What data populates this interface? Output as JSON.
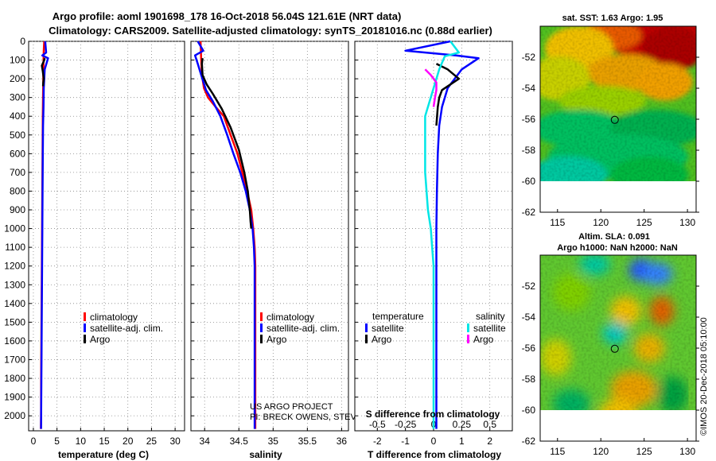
{
  "header": {
    "line1": "Argo profile: aoml 1901698_178 16-Oct-2018 56.04S 121.61E (NRT data)",
    "line2": "Climatology: CARS2009. Satellite-adjusted climatology: synTS_20181016.nc (0.88d earlier)"
  },
  "colors": {
    "climatology": "#ff0000",
    "satellite": "#0000ff",
    "argo": "#000000",
    "sat_salinity": "#00e6e6",
    "argo_salinity": "#ff00ff"
  },
  "chart_data": [
    {
      "id": "temperature",
      "type": "line",
      "xlabel": "temperature (deg C)",
      "ylabel": "",
      "xlim": [
        -1,
        32
      ],
      "ylim": [
        2080,
        0
      ],
      "xticks": [
        0,
        5,
        10,
        15,
        20,
        25,
        30
      ],
      "yticks": [
        0,
        100,
        200,
        300,
        400,
        500,
        600,
        700,
        800,
        900,
        1000,
        1100,
        1200,
        1300,
        1400,
        1500,
        1600,
        1700,
        1800,
        1900,
        2000
      ],
      "series": [
        {
          "name": "climatology",
          "color": "#ff0000",
          "x": [
            2.3,
            2.2,
            2.15,
            2.1,
            2.05,
            2.0,
            1.95,
            1.9,
            1.85,
            1.8,
            1.75,
            1.7,
            1.65,
            1.62,
            1.6
          ],
          "y": [
            0,
            50,
            100,
            200,
            300,
            400,
            600,
            800,
            1000,
            1200,
            1400,
            1600,
            1800,
            2000,
            2070
          ]
        },
        {
          "name": "satellite-adj. clim.",
          "color": "#0000ff",
          "x": [
            2.5,
            2.7,
            1.9,
            3.1,
            2.4,
            2.2,
            2.15,
            2.05,
            2.0,
            1.95,
            1.9,
            1.85,
            1.8,
            1.75,
            1.7,
            1.65,
            1.62
          ],
          "y": [
            0,
            60,
            75,
            90,
            150,
            250,
            350,
            450,
            600,
            800,
            1000,
            1200,
            1400,
            1600,
            1800,
            2000,
            2070
          ]
        },
        {
          "name": "Argo",
          "color": "#000000",
          "x": [
            2.4,
            2.3,
            1.8,
            2.0,
            2.2,
            2.1,
            2.05
          ],
          "y": [
            90,
            100,
            130,
            160,
            200,
            220,
            240
          ]
        }
      ],
      "legend": [
        "climatology",
        "satellite-adj. clim.",
        "Argo"
      ],
      "legend_position": "bottom-right"
    },
    {
      "id": "salinity",
      "type": "line",
      "xlabel": "salinity",
      "ylabel": "",
      "xlim": [
        33.8,
        36.1
      ],
      "ylim": [
        2080,
        0
      ],
      "xticks": [
        34,
        34.5,
        35,
        35.5,
        36
      ],
      "series": [
        {
          "name": "climatology",
          "color": "#ff0000",
          "x": [
            33.94,
            33.95,
            33.96,
            33.99,
            34.05,
            34.16,
            34.28,
            34.38,
            34.48,
            34.55,
            34.62,
            34.68,
            34.71,
            34.73,
            34.74,
            34.74,
            34.74,
            34.74
          ],
          "y": [
            0,
            100,
            180,
            250,
            300,
            350,
            400,
            500,
            600,
            700,
            800,
            900,
            1000,
            1100,
            1200,
            1500,
            1800,
            2070
          ]
        },
        {
          "name": "satellite-adj. clim.",
          "color": "#0000ff",
          "x": [
            33.9,
            33.98,
            33.86,
            33.9,
            33.95,
            34.02,
            34.12,
            34.23,
            34.33,
            34.42,
            34.52,
            34.6,
            34.66,
            34.7,
            34.72,
            34.73,
            34.73,
            34.73
          ],
          "y": [
            0,
            50,
            75,
            120,
            180,
            260,
            320,
            400,
            500,
            600,
            700,
            800,
            900,
            1000,
            1100,
            1200,
            1500,
            2070
          ]
        },
        {
          "name": "Argo",
          "color": "#000000",
          "x": [
            33.97,
            33.96,
            33.97,
            34.03,
            34.12,
            34.25,
            34.38,
            34.5,
            34.58,
            34.63,
            34.66,
            34.67,
            34.68
          ],
          "y": [
            90,
            120,
            180,
            230,
            280,
            360,
            460,
            580,
            700,
            800,
            900,
            960,
            1000
          ]
        }
      ],
      "legend": [
        "climatology",
        "satellite-adj. clim.",
        "Argo"
      ],
      "legend_position": "bottom-right",
      "credit": [
        "US ARGO PROJECT",
        "PI: BRECK OWENS, STEVE JAYNE, P.E. ROBBINS"
      ]
    },
    {
      "id": "difference",
      "type": "line",
      "xlabel": "T difference from climatology",
      "xlabel_top": "S difference from climatology",
      "xlim": [
        -2.8,
        2.8
      ],
      "ylim": [
        2080,
        0
      ],
      "xticks": [
        -2,
        -1,
        0,
        1,
        2
      ],
      "xticks_salinity": [
        "-0.5",
        "-0.25",
        "0",
        "0.25",
        "0.5"
      ],
      "series": [
        {
          "name": "temperature satellite",
          "color": "#0000ff",
          "x": [
            0.6,
            -1.0,
            0.8,
            1.6,
            1.0,
            0.5,
            0.3,
            0.2,
            0.15,
            0.12,
            0.1,
            0.1,
            0.1,
            0.1,
            0.1
          ],
          "y": [
            0,
            50,
            75,
            90,
            150,
            250,
            350,
            450,
            600,
            800,
            1000,
            1200,
            1400,
            1800,
            2070
          ]
        },
        {
          "name": "temperature Argo",
          "color": "#000000",
          "x": [
            0.1,
            0.5,
            0.9,
            0.3,
            0.2,
            0.15,
            0.1
          ],
          "y": [
            120,
            150,
            200,
            260,
            300,
            350,
            450
          ]
        },
        {
          "name": "salinity satellite",
          "color": "#00e6e6",
          "x": [
            0.6,
            0.9,
            0.4,
            0.2,
            0.0,
            -0.3,
            -0.3,
            -0.2,
            -0.1,
            -0.05,
            0.0,
            0.0,
            0.0,
            0.0,
            0.0
          ],
          "y": [
            0,
            60,
            80,
            150,
            250,
            400,
            700,
            900,
            1000,
            1100,
            1200,
            1400,
            1600,
            1800,
            2070
          ]
        },
        {
          "name": "salinity Argo",
          "color": "#ff00ff",
          "x": [
            -0.3,
            -0.1,
            0.1,
            0.1,
            0.05,
            0.0
          ],
          "y": [
            150,
            180,
            220,
            260,
            300,
            350
          ]
        }
      ],
      "legend_temperature_title": "temperature",
      "legend_salinity_title": "salinity",
      "legend_temperature": [
        "satellite",
        "Argo"
      ],
      "legend_salinity": [
        "satellite",
        "Argo"
      ]
    },
    {
      "id": "sst-map",
      "type": "heatmap",
      "title": "sat. SST: 1.63 Argo: 1.95",
      "xlim": [
        113,
        131
      ],
      "ylim": [
        -62,
        -50
      ],
      "xticks": [
        115,
        120,
        125,
        130
      ],
      "yticks": [
        -52,
        -54,
        -56,
        -58,
        -60,
        -62
      ],
      "marker": {
        "lon": 121.61,
        "lat": -56.04
      }
    },
    {
      "id": "sla-map",
      "type": "heatmap",
      "title": "Altim. SLA: 0.091",
      "subtitle": "Argo h1000: NaN h2000: NaN",
      "xlim": [
        113,
        131
      ],
      "ylim": [
        -62,
        -50
      ],
      "xticks": [
        115,
        120,
        125,
        130
      ],
      "yticks": [
        -52,
        -54,
        -56,
        -58,
        -60,
        -62
      ],
      "marker": {
        "lon": 121.61,
        "lat": -56.04
      }
    }
  ],
  "watermark": "©IMOS 20-Dec-2018 05:10:00"
}
